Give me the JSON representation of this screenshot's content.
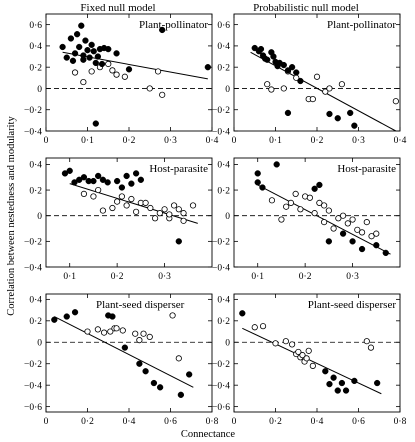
{
  "figure": {
    "column_titles": [
      "Fixed null model",
      "Probabilistic null model"
    ],
    "ylabel": "Correlation between nestedness and modularity",
    "xlabel": "Connectance"
  },
  "chart_data": [
    {
      "type": "scatter",
      "row": 0,
      "col": 0,
      "label": "Plant-pollinator",
      "xlim": [
        0,
        0.4
      ],
      "ylim": [
        -0.4,
        0.7
      ],
      "xticks": [
        0,
        0.1,
        0.2,
        0.3,
        0.4
      ],
      "xtick_labels": [
        "0",
        "0·1",
        "0·2",
        "0·3",
        "0·4"
      ],
      "yticks": [
        -0.4,
        -0.2,
        0,
        0.2,
        0.4,
        0.6
      ],
      "ytick_labels": [
        "−0·4",
        "−0·2",
        "0",
        "0·2",
        "0·4",
        "0·6"
      ],
      "trend_line": [
        [
          0.04,
          0.34
        ],
        [
          0.39,
          0.09
        ]
      ],
      "zero_line": true,
      "filled": [
        [
          0.04,
          0.39
        ],
        [
          0.05,
          0.29
        ],
        [
          0.06,
          0.47
        ],
        [
          0.065,
          0.26
        ],
        [
          0.07,
          0.33
        ],
        [
          0.075,
          0.51
        ],
        [
          0.08,
          0.39
        ],
        [
          0.085,
          0.59
        ],
        [
          0.09,
          0.31
        ],
        [
          0.09,
          0.27
        ],
        [
          0.095,
          0.45
        ],
        [
          0.1,
          0.36
        ],
        [
          0.105,
          0.29
        ],
        [
          0.11,
          0.41
        ],
        [
          0.115,
          0.35
        ],
        [
          0.12,
          0.24
        ],
        [
          0.125,
          0.3
        ],
        [
          0.13,
          0.37
        ],
        [
          0.135,
          0.23
        ],
        [
          0.14,
          0.38
        ],
        [
          0.15,
          0.37
        ],
        [
          0.17,
          0.33
        ],
        [
          0.2,
          0.18
        ],
        [
          0.28,
          0.55
        ],
        [
          0.39,
          0.2
        ],
        [
          0.12,
          -0.33
        ]
      ],
      "open": [
        [
          0.07,
          0.15
        ],
        [
          0.09,
          0.06
        ],
        [
          0.11,
          0.16
        ],
        [
          0.13,
          0.2
        ],
        [
          0.15,
          0.23
        ],
        [
          0.16,
          0.17
        ],
        [
          0.17,
          0.13
        ],
        [
          0.19,
          0.11
        ],
        [
          0.25,
          0.0
        ],
        [
          0.27,
          0.16
        ],
        [
          0.28,
          -0.06
        ]
      ]
    },
    {
      "type": "scatter",
      "row": 0,
      "col": 1,
      "label": "Plant-pollinator",
      "xlim": [
        0,
        0.4
      ],
      "ylim": [
        -0.4,
        0.7
      ],
      "xticks": [
        0,
        0.1,
        0.2,
        0.3,
        0.4
      ],
      "xtick_labels": [
        "0",
        "0·1",
        "0·2",
        "0·3",
        "0·4"
      ],
      "yticks": [
        -0.4,
        -0.2,
        0,
        0.2,
        0.4,
        0.6
      ],
      "ytick_labels": [
        "−0·4",
        "−0·2",
        "0",
        "0·2",
        "0·4",
        "0·6"
      ],
      "trend_line": [
        [
          0.04,
          0.34
        ],
        [
          0.39,
          -0.4
        ]
      ],
      "zero_line": true,
      "filled": [
        [
          0.05,
          0.38
        ],
        [
          0.06,
          0.35
        ],
        [
          0.065,
          0.37
        ],
        [
          0.07,
          0.31
        ],
        [
          0.075,
          0.28
        ],
        [
          0.08,
          0.27
        ],
        [
          0.09,
          0.34
        ],
        [
          0.095,
          0.3
        ],
        [
          0.1,
          0.25
        ],
        [
          0.105,
          0.21
        ],
        [
          0.11,
          0.24
        ],
        [
          0.12,
          0.22
        ],
        [
          0.13,
          0.17
        ],
        [
          0.14,
          0.2
        ],
        [
          0.15,
          0.15
        ],
        [
          0.13,
          -0.23
        ],
        [
          0.16,
          0.07
        ],
        [
          0.23,
          -0.24
        ],
        [
          0.25,
          -0.28
        ],
        [
          0.28,
          -0.23
        ],
        [
          0.29,
          -0.35
        ]
      ],
      "open": [
        [
          0.08,
          0.04
        ],
        [
          0.09,
          -0.01
        ],
        [
          0.12,
          0.0
        ],
        [
          0.13,
          0.16
        ],
        [
          0.15,
          0.1
        ],
        [
          0.18,
          -0.1
        ],
        [
          0.19,
          -0.1
        ],
        [
          0.2,
          0.11
        ],
        [
          0.22,
          -0.03
        ],
        [
          0.23,
          0.0
        ],
        [
          0.26,
          0.04
        ],
        [
          0.39,
          -0.12
        ]
      ]
    },
    {
      "type": "scatter",
      "row": 1,
      "col": 0,
      "label": "Host-parasite",
      "xlim": [
        0.05,
        0.4
      ],
      "ylim": [
        -0.4,
        0.45
      ],
      "xticks": [
        0.1,
        0.2,
        0.3
      ],
      "xtick_labels": [
        "0·1",
        "0·2",
        "0·3"
      ],
      "yticks": [
        -0.4,
        -0.2,
        0,
        0.2,
        0.4
      ],
      "ytick_labels": [
        "−0·4",
        "−0·2",
        "0",
        "0·2",
        "0·4"
      ],
      "trend_line": [
        [
          0.1,
          0.25
        ],
        [
          0.37,
          -0.06
        ]
      ],
      "zero_line": true,
      "filled": [
        [
          0.09,
          0.33
        ],
        [
          0.1,
          0.35
        ],
        [
          0.11,
          0.26
        ],
        [
          0.12,
          0.28
        ],
        [
          0.13,
          0.3
        ],
        [
          0.14,
          0.27
        ],
        [
          0.15,
          0.27
        ],
        [
          0.16,
          0.31
        ],
        [
          0.17,
          0.28
        ],
        [
          0.18,
          0.26
        ],
        [
          0.2,
          0.27
        ],
        [
          0.21,
          0.22
        ],
        [
          0.23,
          0.25
        ],
        [
          0.22,
          0.31
        ],
        [
          0.24,
          0.33
        ],
        [
          0.25,
          0.28
        ],
        [
          0.33,
          -0.2
        ]
      ],
      "open": [
        [
          0.13,
          0.17
        ],
        [
          0.15,
          0.15
        ],
        [
          0.16,
          0.2
        ],
        [
          0.17,
          0.04
        ],
        [
          0.19,
          0.06
        ],
        [
          0.2,
          0.11
        ],
        [
          0.21,
          0.15
        ],
        [
          0.22,
          0.08
        ],
        [
          0.23,
          0.13
        ],
        [
          0.24,
          0.03
        ],
        [
          0.25,
          0.1
        ],
        [
          0.26,
          0.1
        ],
        [
          0.27,
          0.06
        ],
        [
          0.28,
          -0.02
        ],
        [
          0.29,
          0.02
        ],
        [
          0.3,
          0.05
        ],
        [
          0.31,
          -0.02
        ],
        [
          0.32,
          0.08
        ],
        [
          0.33,
          0.05
        ],
        [
          0.34,
          0.02
        ],
        [
          0.34,
          -0.04
        ],
        [
          0.36,
          0.08
        ],
        [
          0.31,
          0.01
        ]
      ]
    },
    {
      "type": "scatter",
      "row": 1,
      "col": 1,
      "label": "Host-parasite",
      "xlim": [
        0.05,
        0.4
      ],
      "ylim": [
        -0.4,
        0.45
      ],
      "xticks": [
        0.1,
        0.2,
        0.3
      ],
      "xtick_labels": [
        "0·1",
        "0·2",
        "0·3"
      ],
      "yticks": [
        -0.4,
        -0.2,
        0,
        0.2,
        0.4
      ],
      "ytick_labels": [
        "−0·4",
        "−0·2",
        "0",
        "0·2",
        "0·4"
      ],
      "trend_line": [
        [
          0.1,
          0.24
        ],
        [
          0.38,
          -0.3
        ]
      ],
      "zero_line": true,
      "filled": [
        [
          0.1,
          0.33
        ],
        [
          0.1,
          0.26
        ],
        [
          0.11,
          0.22
        ],
        [
          0.14,
          0.4
        ],
        [
          0.22,
          0.21
        ],
        [
          0.23,
          0.24
        ],
        [
          0.25,
          -0.2
        ],
        [
          0.28,
          -0.14
        ],
        [
          0.3,
          -0.2
        ],
        [
          0.32,
          -0.26
        ],
        [
          0.35,
          -0.23
        ],
        [
          0.37,
          -0.29
        ]
      ],
      "open": [
        [
          0.13,
          0.12
        ],
        [
          0.16,
          0.07
        ],
        [
          0.17,
          0.1
        ],
        [
          0.18,
          0.17
        ],
        [
          0.19,
          0.05
        ],
        [
          0.2,
          0.15
        ],
        [
          0.21,
          0.14
        ],
        [
          0.22,
          0.02
        ],
        [
          0.23,
          0.1
        ],
        [
          0.24,
          0.08
        ],
        [
          0.24,
          -0.05
        ],
        [
          0.25,
          0.04
        ],
        [
          0.26,
          -0.1
        ],
        [
          0.27,
          -0.02
        ],
        [
          0.28,
          0.0
        ],
        [
          0.29,
          -0.06
        ],
        [
          0.3,
          -0.03
        ],
        [
          0.31,
          -0.11
        ],
        [
          0.32,
          -0.13
        ],
        [
          0.33,
          -0.05
        ],
        [
          0.34,
          -0.16
        ],
        [
          0.35,
          -0.14
        ],
        [
          0.15,
          -0.03
        ]
      ]
    },
    {
      "type": "scatter",
      "row": 2,
      "col": 0,
      "label": "Plant-seed disperser",
      "xlim": [
        0,
        0.8
      ],
      "ylim": [
        -0.65,
        0.45
      ],
      "xticks": [
        0,
        0.2,
        0.4,
        0.6,
        0.8
      ],
      "xtick_labels": [
        "0",
        "0·2",
        "0·4",
        "0·6",
        "0·8"
      ],
      "yticks": [
        -0.6,
        -0.4,
        -0.2,
        0,
        0.2,
        0.4
      ],
      "ytick_labels": [
        "−0·6",
        "−0·4",
        "−0·2",
        "0",
        "0·2",
        "0·4"
      ],
      "trend_line": [
        [
          0.04,
          0.24
        ],
        [
          0.71,
          -0.42
        ]
      ],
      "zero_line": true,
      "filled": [
        [
          0.04,
          0.21
        ],
        [
          0.1,
          0.24
        ],
        [
          0.14,
          0.28
        ],
        [
          0.3,
          0.25
        ],
        [
          0.32,
          0.24
        ],
        [
          0.38,
          -0.05
        ],
        [
          0.45,
          -0.2
        ],
        [
          0.48,
          -0.27
        ],
        [
          0.52,
          -0.38
        ],
        [
          0.55,
          -0.42
        ],
        [
          0.65,
          -0.49
        ],
        [
          0.69,
          -0.3
        ]
      ],
      "open": [
        [
          0.2,
          0.1
        ],
        [
          0.25,
          0.12
        ],
        [
          0.28,
          0.09
        ],
        [
          0.31,
          0.1
        ],
        [
          0.33,
          0.13
        ],
        [
          0.34,
          0.13
        ],
        [
          0.37,
          0.11
        ],
        [
          0.43,
          0.08
        ],
        [
          0.45,
          0.02
        ],
        [
          0.47,
          0.08
        ],
        [
          0.5,
          0.05
        ],
        [
          0.64,
          -0.15
        ],
        [
          0.61,
          0.25
        ]
      ]
    },
    {
      "type": "scatter",
      "row": 2,
      "col": 1,
      "label": "Plant-seed disperser",
      "xlim": [
        0,
        0.8
      ],
      "ylim": [
        -0.65,
        0.45
      ],
      "xticks": [
        0,
        0.2,
        0.4,
        0.6,
        0.8
      ],
      "xtick_labels": [
        "0",
        "0·2",
        "0·4",
        "0·6",
        "0·8"
      ],
      "yticks": [
        -0.6,
        -0.4,
        -0.2,
        0,
        0.2,
        0.4
      ],
      "ytick_labels": [
        "−0·6",
        "−0·4",
        "−0·2",
        "0",
        "0·2",
        "0·4"
      ],
      "trend_line": [
        [
          0.04,
          0.13
        ],
        [
          0.71,
          -0.48
        ]
      ],
      "zero_line": true,
      "filled": [
        [
          0.04,
          0.27
        ],
        [
          0.44,
          -0.27
        ],
        [
          0.46,
          -0.39
        ],
        [
          0.48,
          -0.33
        ],
        [
          0.5,
          -0.45
        ],
        [
          0.52,
          -0.38
        ],
        [
          0.54,
          -0.45
        ],
        [
          0.58,
          -0.36
        ],
        [
          0.69,
          -0.38
        ]
      ],
      "open": [
        [
          0.1,
          0.14
        ],
        [
          0.14,
          0.15
        ],
        [
          0.2,
          -0.01
        ],
        [
          0.25,
          0.01
        ],
        [
          0.28,
          -0.02
        ],
        [
          0.3,
          -0.11
        ],
        [
          0.31,
          -0.09
        ],
        [
          0.32,
          -0.14
        ],
        [
          0.33,
          -0.12
        ],
        [
          0.34,
          -0.18
        ],
        [
          0.35,
          -0.15
        ],
        [
          0.36,
          -0.08
        ],
        [
          0.38,
          -0.22
        ],
        [
          0.64,
          0.01
        ],
        [
          0.66,
          -0.05
        ]
      ]
    }
  ]
}
